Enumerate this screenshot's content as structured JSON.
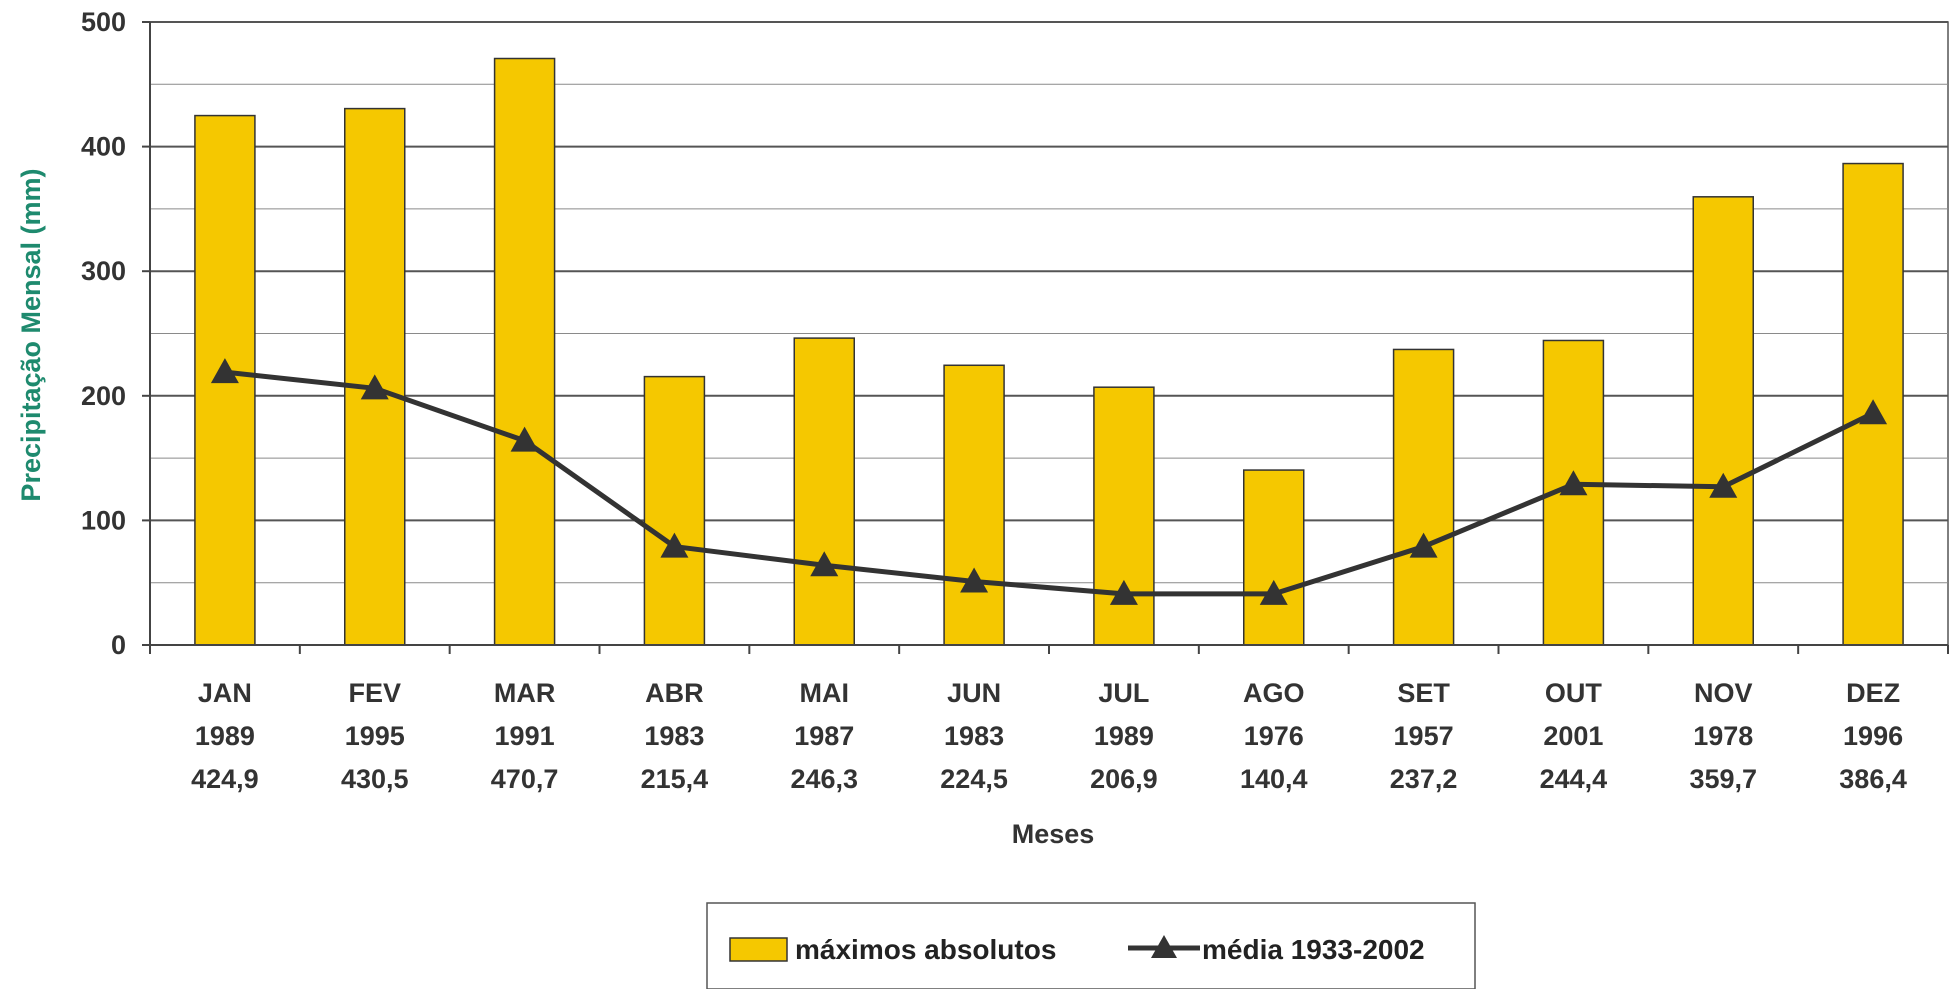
{
  "chart_data": {
    "type": "bar",
    "categories": [
      "JAN",
      "FEV",
      "MAR",
      "ABR",
      "MAI",
      "JUN",
      "JUL",
      "AGO",
      "SET",
      "OUT",
      "NOV",
      "DEZ"
    ],
    "category_years": [
      "1989",
      "1995",
      "1991",
      "1983",
      "1987",
      "1983",
      "1989",
      "1976",
      "1957",
      "2001",
      "1978",
      "1996"
    ],
    "category_value_labels": [
      "424,9",
      "430,5",
      "470,7",
      "215,4",
      "246,3",
      "224,5",
      "206,9",
      "140,4",
      "237,2",
      "244,4",
      "359,7",
      "386,4"
    ],
    "series": [
      {
        "name": "máximos absolutos",
        "type": "bar",
        "color": "#f5c800",
        "values": [
          424.9,
          430.5,
          470.7,
          215.4,
          246.3,
          224.5,
          206.9,
          140.4,
          237.2,
          244.4,
          359.7,
          386.4
        ]
      },
      {
        "name": "média 1933-2002",
        "type": "line",
        "marker": "triangle",
        "color": "#333333",
        "values": [
          219,
          206,
          164,
          79,
          64,
          51,
          41,
          41,
          79,
          129,
          127,
          186
        ]
      }
    ],
    "xlabel": "Meses",
    "ylabel": "Precipitação Mensal (mm)",
    "ylabel_color": "#1e8a6e",
    "ylim": [
      0,
      500
    ],
    "yticks": [
      0,
      100,
      200,
      300,
      400,
      500
    ],
    "grid": true,
    "legend": "bottom-center"
  }
}
